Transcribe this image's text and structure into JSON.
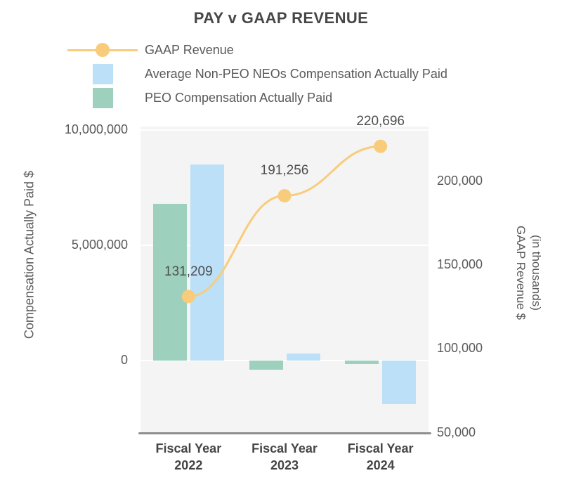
{
  "title": "PAY v GAAP REVENUE",
  "legend": [
    {
      "label": "GAAP Revenue",
      "swatch": "line-marker",
      "color": "#F8CC7A"
    },
    {
      "label": "Average Non-PEO NEOs Compensation Actually Paid",
      "swatch": "square",
      "color": "#BCE0F7"
    },
    {
      "label": "PEO Compensation Actually Paid",
      "swatch": "square",
      "color": "#9DD1BE"
    }
  ],
  "colors": {
    "plot_background": "#F4F4F4",
    "gridline": "#FFFFFF",
    "axis_line": "#8E8E8E",
    "text": "#595959"
  },
  "chart_data": {
    "type": "combo",
    "categories": [
      "Fiscal Year 2022",
      "Fiscal Year 2023",
      "Fiscal Year 2024"
    ],
    "series": [
      {
        "name": "PEO Compensation Actually Paid",
        "chart_type": "bar",
        "axis": "left",
        "color": "#9DD1BE",
        "values": [
          6800000,
          -400000,
          -150000
        ]
      },
      {
        "name": "Average Non-PEO NEOs Compensation Actually Paid",
        "chart_type": "bar",
        "axis": "left",
        "color": "#BCE0F7",
        "values": [
          8500000,
          300000,
          -1900000
        ]
      },
      {
        "name": "GAAP Revenue",
        "chart_type": "line",
        "axis": "right",
        "color": "#F8CC7A",
        "values": [
          131209,
          191256,
          220696
        ],
        "point_labels": [
          "131,209",
          "191,256",
          "220,696"
        ]
      }
    ],
    "left_axis": {
      "label": "Compensation Actually Paid $",
      "ticks": [
        10000000,
        5000000,
        0
      ],
      "tick_labels": [
        "10,000,000",
        "5,000,000",
        "0"
      ],
      "range": [
        -3170000,
        10150000
      ]
    },
    "right_axis": {
      "label": "GAAP Revenue $ (in thousands)",
      "label_line1": "GAAP Revenue $",
      "label_line2": "(in thousands)",
      "ticks": [
        200000,
        150000,
        100000,
        50000
      ],
      "tick_labels": [
        "200,000",
        "150,000",
        "100,000",
        "50,000"
      ],
      "range": [
        49500,
        232500
      ]
    },
    "grid": true,
    "legend_position": "top-left"
  }
}
